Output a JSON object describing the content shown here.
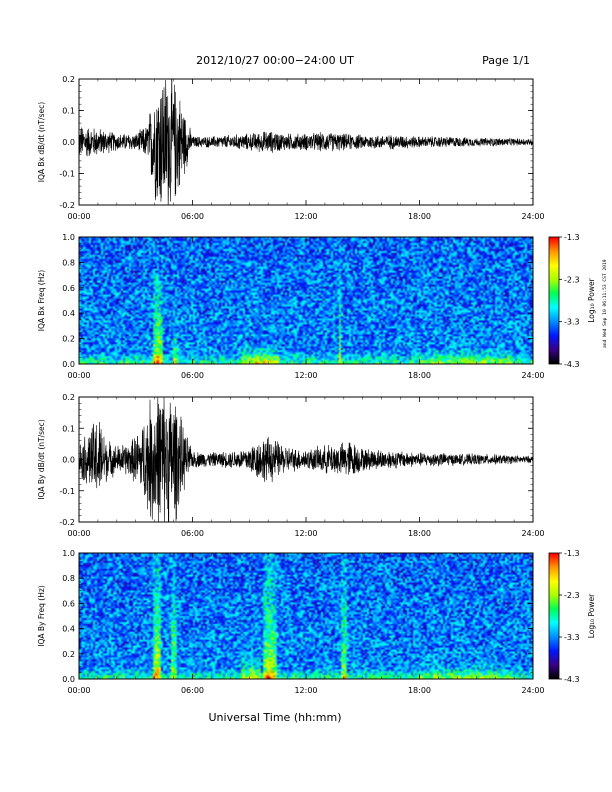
{
  "header": {
    "title": "2012/10/27  00:00−24:00 UT",
    "page": "Page 1/1"
  },
  "footer": {
    "xlabel": "Universal Time (hh:mm)"
  },
  "side_note": "and Wed Sep 10 06:11:53 CST 2019",
  "colorbar": {
    "label": "Log₁₀ Power",
    "ticks": [
      "-1.3",
      "-2.3",
      "-3.3",
      "-4.3"
    ],
    "tick_values": [
      -1.3,
      -2.3,
      -3.3,
      -4.3
    ],
    "range": [
      -4.3,
      -1.3
    ],
    "colors": [
      "#000000",
      "#3a0088",
      "#0018ff",
      "#0090ff",
      "#00ffff",
      "#00ff55",
      "#aaff00",
      "#ffff00",
      "#ff9900",
      "#ff0000"
    ]
  },
  "x_ticks": [
    "00:00",
    "06:00",
    "12:00",
    "18:00",
    "24:00"
  ],
  "chart_data": [
    {
      "type": "line",
      "ylabel": "IQA Bx dB/dt (nT/sec)",
      "xlim": [
        0,
        24
      ],
      "ylim": [
        -0.2,
        0.2
      ],
      "y_ticks": [
        "0.2",
        "0.1",
        "0.0",
        "-0.1",
        "-0.2"
      ],
      "y_tick_values": [
        0.2,
        0.1,
        0.0,
        -0.1,
        -0.2
      ],
      "amplitude_envelope": {
        "hours": [
          0,
          1,
          2,
          3,
          3.6,
          4.0,
          4.3,
          4.7,
          5.2,
          6,
          7,
          8,
          9,
          10,
          11,
          12,
          13,
          14,
          15,
          16,
          17,
          18,
          19,
          20,
          21,
          22,
          23,
          24
        ],
        "amplitude": [
          0.06,
          0.05,
          0.03,
          0.03,
          0.06,
          0.2,
          0.25,
          0.25,
          0.2,
          0.02,
          0.02,
          0.025,
          0.03,
          0.04,
          0.03,
          0.03,
          0.035,
          0.03,
          0.025,
          0.025,
          0.025,
          0.02,
          0.02,
          0.018,
          0.015,
          0.015,
          0.013,
          0.012
        ]
      }
    },
    {
      "type": "heatmap",
      "ylabel": "IQA Bx Freq (Hz)",
      "xlim": [
        0,
        24
      ],
      "ylim": [
        0.0,
        1.0
      ],
      "y_ticks": [
        "1.0",
        "0.8",
        "0.6",
        "0.4",
        "0.2",
        "0.0"
      ],
      "y_tick_values": [
        1.0,
        0.8,
        0.6,
        0.4,
        0.2,
        0.0
      ],
      "zlim": [
        -4.3,
        -1.3
      ],
      "bursts": [
        {
          "start": 3.9,
          "end": 4.4,
          "strength": 1.0,
          "top": 0.7
        },
        {
          "start": 4.9,
          "end": 5.2,
          "strength": 0.6,
          "top": 0.4
        },
        {
          "start": 8.6,
          "end": 10.6,
          "strength": 0.7,
          "top": 0.15
        },
        {
          "start": 13.7,
          "end": 13.9,
          "strength": 0.6,
          "top": 0.95
        },
        {
          "start": 18.0,
          "end": 23.0,
          "strength": 0.4,
          "top": 0.12
        }
      ]
    },
    {
      "type": "line",
      "ylabel": "IQA By dB/dt (nT/sec)",
      "xlim": [
        0,
        24
      ],
      "ylim": [
        -0.2,
        0.2
      ],
      "y_ticks": [
        "0.2",
        "0.1",
        "0.0",
        "-0.1",
        "-0.2"
      ],
      "y_tick_values": [
        0.2,
        0.1,
        0.0,
        -0.1,
        -0.2
      ],
      "amplitude_envelope": {
        "hours": [
          0,
          0.5,
          1,
          1.5,
          2,
          2.7,
          3.3,
          3.9,
          4.2,
          4.6,
          5.1,
          5.5,
          6,
          7,
          8,
          8.8,
          9.7,
          10.2,
          10.8,
          11.5,
          12,
          13,
          14,
          14.3,
          15,
          16,
          17,
          18,
          19,
          20,
          21,
          22,
          23,
          24
        ],
        "amplitude": [
          0.06,
          0.1,
          0.16,
          0.07,
          0.05,
          0.06,
          0.12,
          0.24,
          0.25,
          0.25,
          0.22,
          0.12,
          0.03,
          0.025,
          0.03,
          0.04,
          0.08,
          0.08,
          0.05,
          0.04,
          0.035,
          0.05,
          0.06,
          0.07,
          0.04,
          0.035,
          0.03,
          0.025,
          0.025,
          0.02,
          0.02,
          0.018,
          0.015,
          0.012
        ]
      }
    },
    {
      "type": "heatmap",
      "ylabel": "IQA By Freq (Hz)",
      "xlim": [
        0,
        24
      ],
      "ylim": [
        0.0,
        1.0
      ],
      "y_ticks": [
        "1.0",
        "0.8",
        "0.6",
        "0.4",
        "0.2",
        "0.0"
      ],
      "y_tick_values": [
        1.0,
        0.8,
        0.6,
        0.4,
        0.2,
        0.0
      ],
      "zlim": [
        -4.3,
        -1.3
      ],
      "bursts": [
        {
          "start": 3.9,
          "end": 4.3,
          "strength": 1.0,
          "top": 1.0
        },
        {
          "start": 4.8,
          "end": 5.1,
          "strength": 0.7,
          "top": 1.0
        },
        {
          "start": 8.5,
          "end": 9.6,
          "strength": 0.6,
          "top": 0.2
        },
        {
          "start": 9.7,
          "end": 10.5,
          "strength": 0.9,
          "top": 1.0
        },
        {
          "start": 13.9,
          "end": 14.2,
          "strength": 0.7,
          "top": 1.0
        },
        {
          "start": 18.0,
          "end": 23.0,
          "strength": 0.35,
          "top": 0.12
        }
      ]
    }
  ]
}
